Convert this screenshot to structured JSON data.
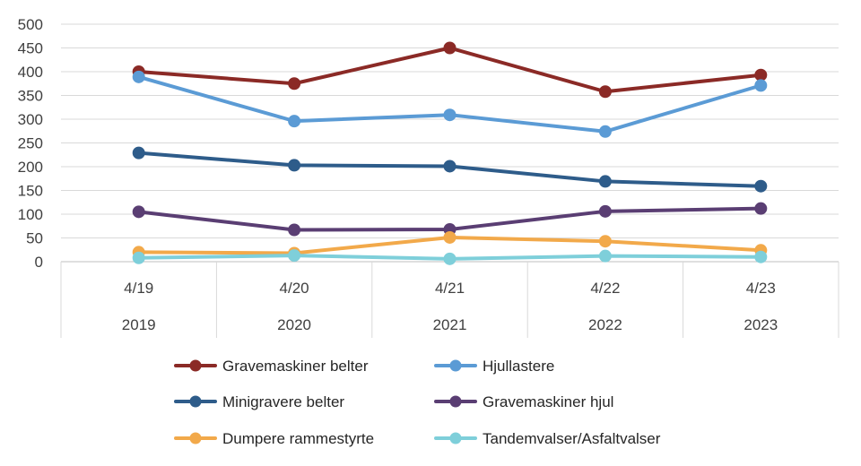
{
  "chart_data": {
    "type": "line",
    "title": "",
    "xlabel": "",
    "ylabel": "",
    "ylim": [
      0,
      500
    ],
    "yticks": [
      "0",
      "50",
      "100",
      "150",
      "200",
      "250",
      "300",
      "350",
      "400",
      "450",
      "500"
    ],
    "categories": [
      "4/19",
      "4/20",
      "4/21",
      "4/22",
      "4/23"
    ],
    "category_groups": [
      "2019",
      "2020",
      "2021",
      "2022",
      "2023"
    ],
    "grid": true,
    "legend_position": "bottom",
    "series": [
      {
        "name": "Gravemaskiner belter",
        "color": "#8B2A26",
        "values": [
          400,
          375,
          450,
          358,
          393
        ]
      },
      {
        "name": "Hjullastere",
        "color": "#5B9BD5",
        "values": [
          389,
          296,
          309,
          274,
          371
        ]
      },
      {
        "name": "Minigravere belter",
        "color": "#2E5C8A",
        "values": [
          229,
          203,
          201,
          169,
          159
        ]
      },
      {
        "name": "Gravemaskiner hjul",
        "color": "#5A3E73",
        "values": [
          105,
          67,
          68,
          106,
          112
        ]
      },
      {
        "name": "Dumpere rammestyrte",
        "color": "#F2A94A",
        "values": [
          20,
          18,
          51,
          43,
          24
        ]
      },
      {
        "name": "Tandemvalser/Asfaltvalser",
        "color": "#7ECFDA",
        "values": [
          8,
          13,
          6,
          12,
          10
        ]
      }
    ]
  }
}
